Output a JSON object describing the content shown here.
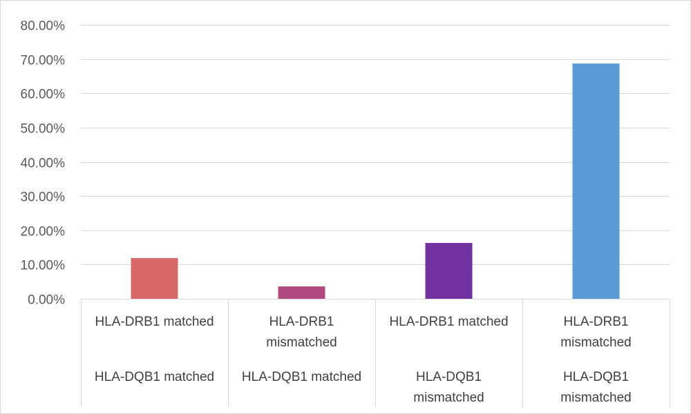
{
  "chart_data": {
    "type": "bar",
    "title": "",
    "xlabel": "",
    "ylabel": "",
    "ylim": [
      0,
      80
    ],
    "y_ticks": [
      0,
      10,
      20,
      30,
      40,
      50,
      60,
      70,
      80
    ],
    "y_tick_labels": [
      "0.00%",
      "10.00%",
      "20.00%",
      "30.00%",
      "40.00%",
      "50.00%",
      "60.00%",
      "70.00%",
      "80.00%"
    ],
    "grid": true,
    "categories": [
      {
        "drb1": [
          "HLA-DRB1 matched"
        ],
        "dqb1": [
          "HLA-DQB1 matched"
        ]
      },
      {
        "drb1": [
          "HLA-DRB1",
          "mismatched"
        ],
        "dqb1": [
          "HLA-DQB1 matched"
        ]
      },
      {
        "drb1": [
          "HLA-DRB1 matched"
        ],
        "dqb1": [
          "HLA-DQB1",
          "mismatched"
        ]
      },
      {
        "drb1": [
          "HLA-DRB1",
          "mismatched"
        ],
        "dqb1": [
          "HLA-DQB1",
          "mismatched"
        ]
      }
    ],
    "values": [
      11.9,
      3.6,
      16.3,
      68.7
    ],
    "colors": [
      "#d9686a",
      "#b0497f",
      "#7030a0",
      "#5b9bd5"
    ]
  }
}
